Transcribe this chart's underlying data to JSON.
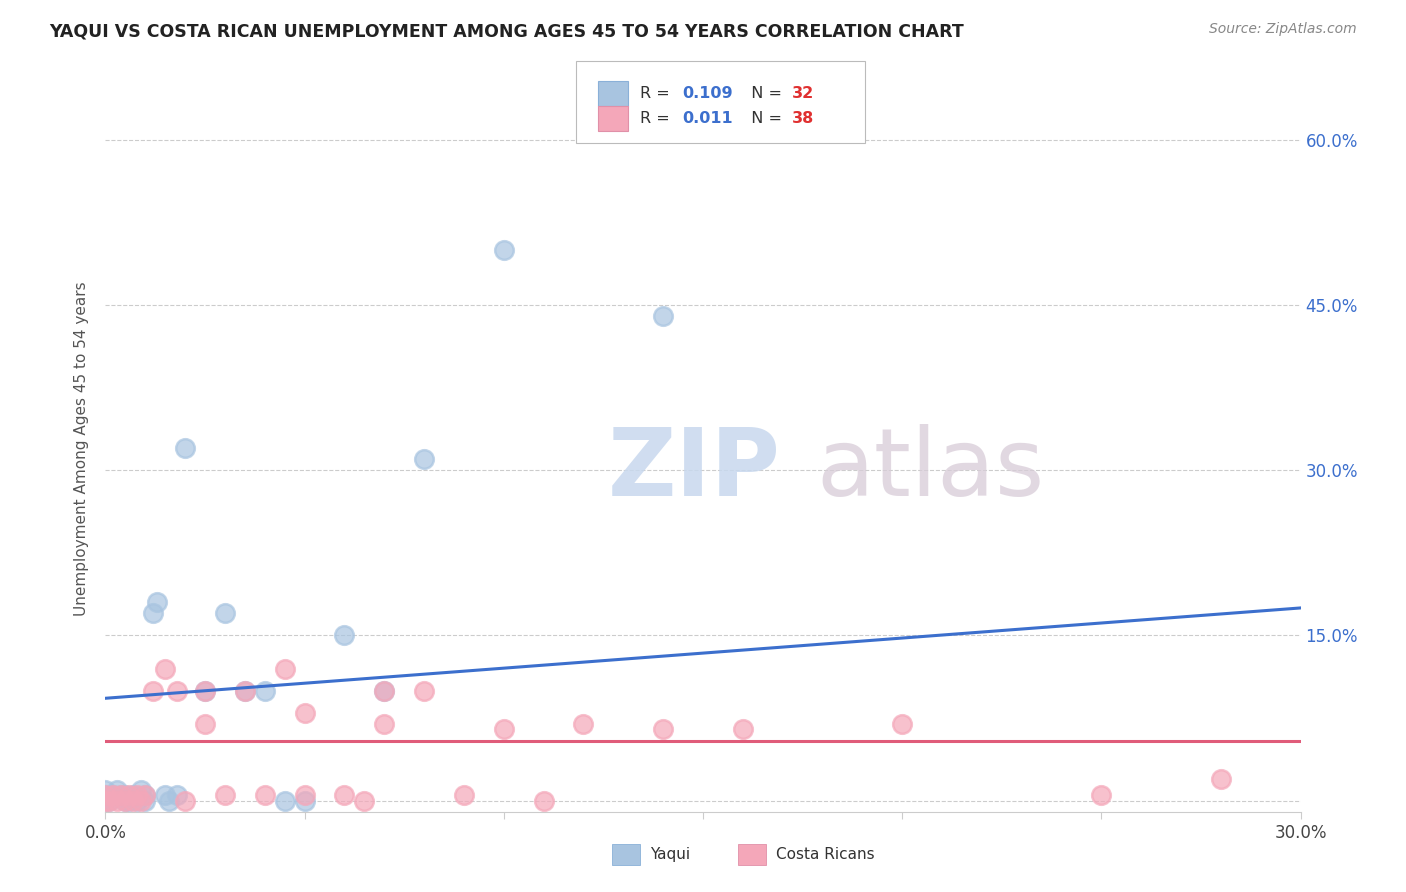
{
  "title": "YAQUI VS COSTA RICAN UNEMPLOYMENT AMONG AGES 45 TO 54 YEARS CORRELATION CHART",
  "source": "Source: ZipAtlas.com",
  "ylabel": "Unemployment Among Ages 45 to 54 years",
  "xlim": [
    0.0,
    0.3
  ],
  "ylim": [
    -0.01,
    0.65
  ],
  "xticks": [
    0.0,
    0.05,
    0.1,
    0.15,
    0.2,
    0.25,
    0.3
  ],
  "xticklabels": [
    "0.0%",
    "",
    "",
    "",
    "",
    "",
    "30.0%"
  ],
  "yticks": [
    0.0,
    0.15,
    0.3,
    0.45,
    0.6
  ],
  "yticklabels": [
    "",
    "15.0%",
    "30.0%",
    "45.0%",
    "60.0%"
  ],
  "yaqui_R": "0.109",
  "yaqui_N": "32",
  "costa_R": "0.011",
  "costa_N": "38",
  "yaqui_color": "#a8c4e0",
  "costa_color": "#f4a7b9",
  "yaqui_line_color": "#3c6fcd",
  "costa_line_color": "#e05c7a",
  "legend_R_color": "#3c6fcd",
  "legend_N_color": "#e03030",
  "yaqui_x": [
    0.0,
    0.0,
    0.0,
    0.001,
    0.002,
    0.003,
    0.004,
    0.005,
    0.005,
    0.006,
    0.007,
    0.008,
    0.009,
    0.01,
    0.01,
    0.012,
    0.013,
    0.015,
    0.016,
    0.018,
    0.02,
    0.025,
    0.03,
    0.035,
    0.04,
    0.045,
    0.05,
    0.06,
    0.07,
    0.08,
    0.1,
    0.14
  ],
  "yaqui_y": [
    0.0,
    0.005,
    0.01,
    0.0,
    0.005,
    0.01,
    0.005,
    0.0,
    0.005,
    0.0,
    0.005,
    0.0,
    0.01,
    0.0,
    0.005,
    0.17,
    0.18,
    0.005,
    0.0,
    0.005,
    0.32,
    0.1,
    0.17,
    0.1,
    0.1,
    0.0,
    0.0,
    0.15,
    0.1,
    0.31,
    0.5,
    0.44
  ],
  "costa_x": [
    0.0,
    0.0,
    0.001,
    0.002,
    0.003,
    0.004,
    0.005,
    0.006,
    0.007,
    0.008,
    0.009,
    0.01,
    0.012,
    0.015,
    0.018,
    0.02,
    0.025,
    0.025,
    0.03,
    0.035,
    0.04,
    0.045,
    0.05,
    0.05,
    0.06,
    0.065,
    0.07,
    0.07,
    0.08,
    0.09,
    0.1,
    0.11,
    0.12,
    0.14,
    0.16,
    0.2,
    0.25,
    0.28
  ],
  "costa_y": [
    0.0,
    0.005,
    0.0,
    0.005,
    0.0,
    0.005,
    0.0,
    0.005,
    0.0,
    0.005,
    0.0,
    0.005,
    0.1,
    0.12,
    0.1,
    0.0,
    0.07,
    0.1,
    0.005,
    0.1,
    0.005,
    0.12,
    0.005,
    0.08,
    0.005,
    0.0,
    0.07,
    0.1,
    0.1,
    0.005,
    0.065,
    0.0,
    0.07,
    0.065,
    0.065,
    0.07,
    0.005,
    0.02
  ],
  "yaqui_trend_x": [
    0.0,
    0.3
  ],
  "yaqui_trend_y": [
    0.093,
    0.175
  ],
  "costa_trend_x": [
    0.0,
    0.3
  ],
  "costa_trend_y": [
    0.054,
    0.054
  ]
}
